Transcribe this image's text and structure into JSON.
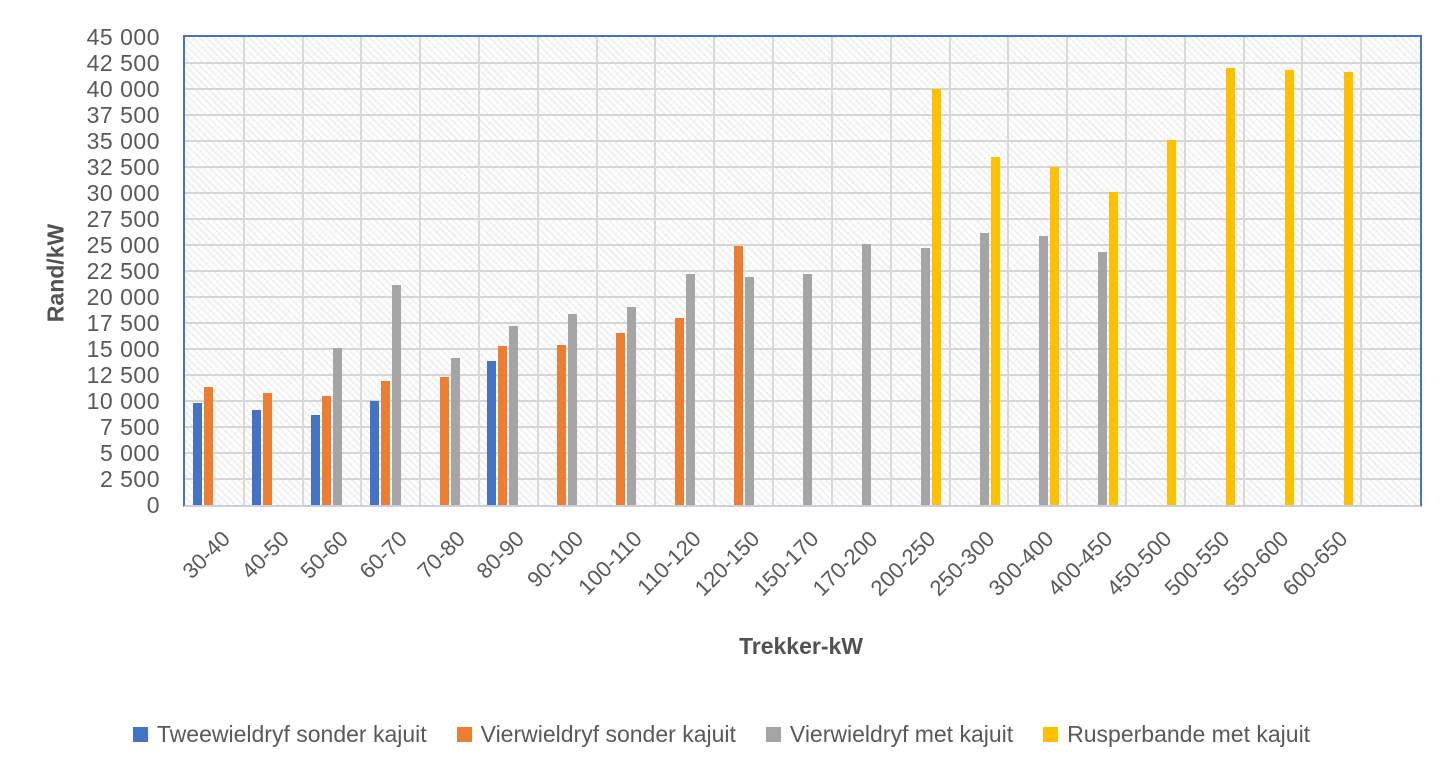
{
  "chart_data": {
    "type": "bar",
    "title": "",
    "xlabel": "Trekker-kW",
    "ylabel": "Rand/kW",
    "ylim": [
      0,
      45000
    ],
    "ytick_step": 2500,
    "yticks": [
      "0",
      "2 500",
      "5 000",
      "7 500",
      "10 000",
      "12 500",
      "15 000",
      "17 500",
      "20 000",
      "22 500",
      "25 000",
      "27 500",
      "30 000",
      "32 500",
      "35 000",
      "37 500",
      "40 000",
      "42 500",
      "45 000"
    ],
    "categories": [
      "30-40",
      "40-50",
      "50-60",
      "60-70",
      "70-80",
      "80-90",
      "90-100",
      "100-110",
      "110-120",
      "120-150",
      "150-170",
      "170-200",
      "200-250",
      "250-300",
      "300-400",
      "400-450",
      "450-500",
      "500-550",
      "550-600",
      "600-650"
    ],
    "series": [
      {
        "name": "Tweewieldryf sonder kajuit",
        "color": "#4472C4",
        "values": [
          9800,
          9100,
          8700,
          10000,
          null,
          13800,
          null,
          null,
          null,
          null,
          null,
          null,
          null,
          null,
          null,
          null,
          null,
          null,
          null,
          null
        ]
      },
      {
        "name": "Vierwieldryf sonder kajuit",
        "color": "#ED7D31",
        "values": [
          11300,
          10800,
          10500,
          11900,
          12300,
          15300,
          15400,
          16500,
          18000,
          24900,
          null,
          null,
          null,
          null,
          null,
          null,
          null,
          null,
          null,
          null
        ]
      },
      {
        "name": "Vierwieldryf met kajuit",
        "color": "#A5A5A5",
        "values": [
          null,
          null,
          15100,
          21200,
          14100,
          17200,
          18400,
          19000,
          22200,
          21900,
          22200,
          25100,
          24700,
          26200,
          25900,
          24300,
          null,
          null,
          null,
          null
        ]
      },
      {
        "name": "Rusperbande met kajuit",
        "color": "#FFC000",
        "values": [
          null,
          null,
          null,
          null,
          null,
          null,
          null,
          null,
          null,
          null,
          null,
          null,
          40000,
          33500,
          32500,
          30100,
          35100,
          42000,
          41800,
          41600
        ]
      }
    ],
    "legend_position": "bottom",
    "grid": "both",
    "plot_border_color": "#4472C4",
    "gridline_color": "#D9D9D9",
    "text_color": "#595959"
  }
}
